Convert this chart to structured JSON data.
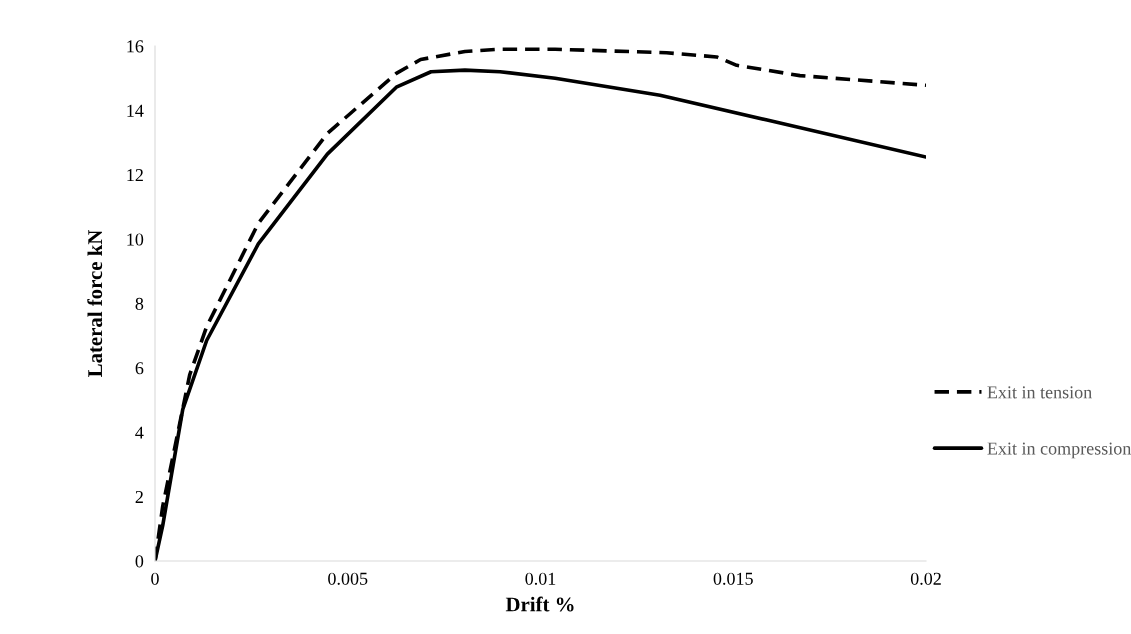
{
  "chart_data": {
    "type": "line",
    "xlabel": "Drift %",
    "ylabel": "Lateral force kN",
    "xlim": [
      0,
      0.02
    ],
    "xticks": [
      0,
      0.005,
      0.01,
      0.015,
      0.02
    ],
    "ylim": [
      0,
      16
    ],
    "yticks": [
      0,
      2,
      4,
      6,
      8,
      10,
      12,
      14,
      16
    ],
    "grid": false,
    "legend": "right",
    "marker": "none",
    "series": [
      {
        "name": "Exit in tension",
        "color": "#000000",
        "line_style": "dashed",
        "x": [
          0,
          0.0002,
          0.0009,
          0.00134,
          0.00268,
          0.00447,
          0.00626,
          0.00689,
          0.00804,
          0.00895,
          0.01038,
          0.01327,
          0.01457,
          0.01509,
          0.01673,
          0.02
        ],
        "values": [
          0,
          1.7,
          5.78,
          7.28,
          10.49,
          13.28,
          15.15,
          15.58,
          15.83,
          15.9,
          15.9,
          15.79,
          15.66,
          15.4,
          15.08,
          14.78
        ]
      },
      {
        "name": "Exit in compression",
        "color": "#000000",
        "line_style": "solid",
        "x": [
          0,
          0.0002,
          0.00072,
          0.00134,
          0.00268,
          0.00447,
          0.00626,
          0.00716,
          0.00804,
          0.00895,
          0.01038,
          0.0131,
          0.01588,
          0.02
        ],
        "values": [
          0,
          1.1,
          4.71,
          6.85,
          9.85,
          12.64,
          14.72,
          15.2,
          15.25,
          15.2,
          15.0,
          14.47,
          13.7,
          12.55
        ]
      }
    ]
  }
}
